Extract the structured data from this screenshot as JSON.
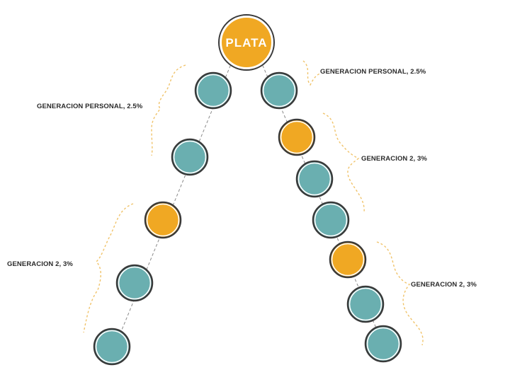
{
  "root": {
    "label": "PLATA",
    "color": "#F0A823"
  },
  "colors": {
    "gold": "#F0A823",
    "teal": "#6AAFB0",
    "ring": "#3a3a3a",
    "connector": "#8a8a8a",
    "brace": "#F0C36A"
  },
  "left_branch": {
    "nodes": [
      "teal",
      "teal",
      "gold",
      "teal",
      "teal"
    ]
  },
  "right_branch": {
    "nodes": [
      "teal",
      "gold",
      "teal",
      "teal",
      "gold",
      "teal",
      "teal"
    ]
  },
  "labels": {
    "left_personal": "GENERACION PERSONAL, 2.5%",
    "right_personal": "GENERACION PERSONAL, 2.5%",
    "right_gen2_upper": "GENERACION 2, 3%",
    "left_gen2": "GENERACION 2, 3%",
    "right_gen2_lower": "GENERACION 2, 3%"
  }
}
